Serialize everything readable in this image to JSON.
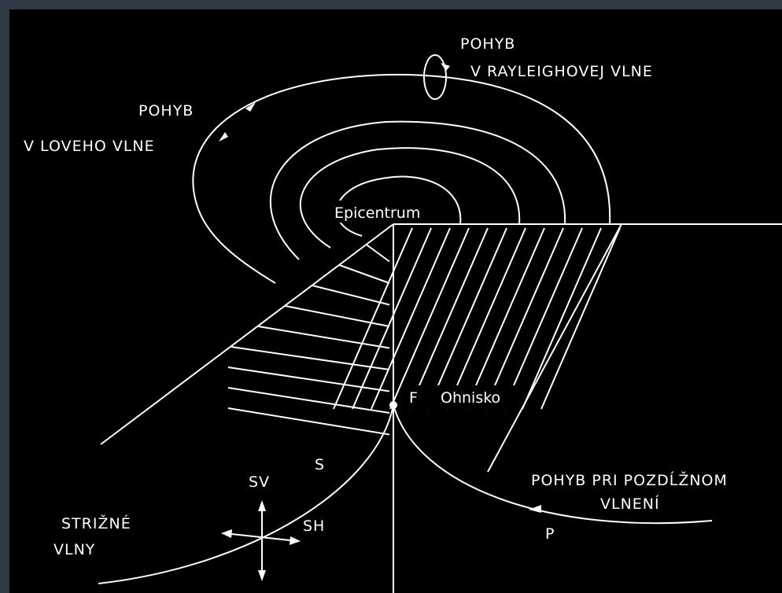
{
  "rayleigh": {
    "title": "POHYB",
    "subtitle": "V RAYLEIGHOVEJ VLNE"
  },
  "love": {
    "title": "POHYB",
    "subtitle": "V LOVEHO VLNE"
  },
  "epicenter": "Epicentrum",
  "focus": {
    "symbol": "F",
    "label": "Ohnisko"
  },
  "shear": {
    "symbol": "S",
    "vertical": "SV",
    "horizontal": "SH",
    "title": "STRIŽNÉ",
    "subtitle": "VLNY"
  },
  "longitudinal": {
    "title": "POHYB PRI POZDĹŽNOM",
    "subtitle": "VLNENÍ",
    "symbol": "P"
  }
}
